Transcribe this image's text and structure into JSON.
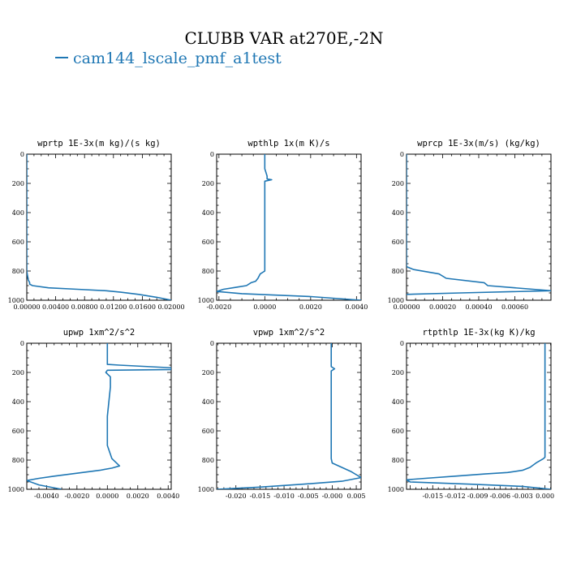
{
  "figure_title": "CLUBB VAR at270E,-2N",
  "legend": {
    "label": "cam144_lscale_pmf_a1test",
    "color": "#1f77b4"
  },
  "chart_data": [
    {
      "type": "line",
      "title": "wprtp  1E-3x(m kg)/(s kg)",
      "xlim": [
        0.0,
        0.02
      ],
      "ylim": [
        1000,
        0
      ],
      "xticks": [
        0.0,
        0.004,
        0.008,
        0.012,
        0.016,
        0.02
      ],
      "xtick_labels": [
        "0.00000",
        "0.00400",
        "0.00800",
        "0.01200",
        "0.01600",
        "0.02000"
      ],
      "yticks": [
        0,
        200,
        400,
        600,
        800,
        1000
      ],
      "series": [
        {
          "x": [
            0.0,
            0.0,
            0.0,
            0.0,
            0.0,
            0.0002,
            0.0004,
            0.0004,
            0.0008,
            0.003,
            0.007,
            0.011,
            0.013,
            0.0155,
            0.018,
            0.02
          ],
          "y": [
            0,
            200,
            400,
            600,
            800,
            860,
            880,
            890,
            900,
            915,
            925,
            935,
            945,
            960,
            980,
            1000
          ]
        }
      ]
    },
    {
      "type": "line",
      "title": "wpthlp  1x(m K)/s",
      "xlim": [
        -0.0021,
        0.0042
      ],
      "ylim": [
        1000,
        0
      ],
      "xticks": [
        -0.002,
        0.0,
        0.002,
        0.004
      ],
      "xtick_labels": [
        "-0.0020",
        "0.0000",
        "0.0020",
        "0.0040"
      ],
      "yticks": [
        0,
        200,
        400,
        600,
        800,
        1000
      ],
      "series": [
        {
          "x": [
            0.0,
            0.0,
            0.0001,
            0.0001,
            0.0001,
            0.0003,
            0.0,
            0.0,
            0.0,
            0.0,
            0.0,
            0.0,
            0.0,
            0.0,
            -0.0002,
            -0.0003,
            -0.0004,
            -0.0006,
            -0.0008,
            -0.0012,
            -0.0018,
            -0.0021,
            -0.001,
            0.002,
            0.0042
          ],
          "y": [
            0,
            100,
            150,
            165,
            170,
            175,
            185,
            200,
            300,
            400,
            500,
            600,
            700,
            800,
            820,
            850,
            870,
            880,
            900,
            910,
            925,
            940,
            955,
            975,
            1000
          ]
        }
      ]
    },
    {
      "type": "line",
      "title": "wprcp  1E-3x(m/s) (kg/kg)",
      "xlim": [
        0.0,
        0.0008
      ],
      "ylim": [
        1000,
        0
      ],
      "xticks": [
        0.0,
        0.0002,
        0.0004,
        0.0006
      ],
      "xtick_labels": [
        "0.00000",
        "0.00020",
        "0.00040",
        "0.00060"
      ],
      "yticks": [
        0,
        200,
        400,
        600,
        800,
        1000
      ],
      "series": [
        {
          "x": [
            0.0,
            0.0,
            0.0,
            4e-05,
            0.00018,
            0.00022,
            0.00043,
            0.00045,
            0.0006,
            0.0008,
            0.0003,
            0.0
          ],
          "y": [
            0,
            600,
            770,
            790,
            820,
            850,
            880,
            900,
            915,
            935,
            950,
            960
          ]
        }
      ]
    },
    {
      "type": "line",
      "title": "upwp  1xm^2/s^2",
      "xlim": [
        -0.0053,
        0.0042
      ],
      "ylim": [
        1000,
        0
      ],
      "xticks": [
        -0.004,
        -0.002,
        0.0,
        0.002,
        0.004
      ],
      "xtick_labels": [
        "-0.0040",
        "-0.0020",
        "0.0000",
        "0.0020",
        "0.0040"
      ],
      "yticks": [
        0,
        200,
        400,
        600,
        800,
        1000
      ],
      "series": [
        {
          "x": [
            0.0,
            0.0,
            0.0,
            0.0008,
            0.0042,
            0.0042,
            0.0,
            -0.0001,
            0.0002,
            0.0002,
            0.0001,
            0.0,
            0.0,
            0.0,
            0.0003,
            0.0006,
            0.0008,
            0.0003,
            -0.0005,
            -0.002,
            -0.0035,
            -0.0045,
            -0.0053,
            -0.0045,
            -0.003
          ],
          "y": [
            0,
            100,
            145,
            150,
            168,
            180,
            185,
            200,
            230,
            300,
            400,
            500,
            600,
            700,
            790,
            820,
            840,
            855,
            870,
            890,
            910,
            925,
            940,
            970,
            1000
          ]
        }
      ]
    },
    {
      "type": "line",
      "title": "vpwp  1xm^2/s^2",
      "xlim": [
        -0.024,
        0.006
      ],
      "ylim": [
        1000,
        0
      ],
      "xticks": [
        -0.02,
        -0.015,
        -0.01,
        -0.005,
        0.0,
        0.005
      ],
      "xtick_labels": [
        "-0.020",
        "-0.015",
        "-0.010",
        "-0.005",
        "-0.000",
        "0.005"
      ],
      "yticks": [
        0,
        200,
        400,
        600,
        800,
        1000
      ],
      "series": [
        {
          "x": [
            -0.0002,
            -0.0002,
            -0.0002,
            0.0005,
            -0.0002,
            -0.0002,
            -0.0002,
            -0.0002,
            -0.0002,
            -0.0002,
            -0.0002,
            0.0,
            0.002,
            0.004,
            0.005,
            0.006,
            0.002,
            -0.006,
            -0.015,
            -0.024
          ],
          "y": [
            0,
            100,
            160,
            175,
            190,
            200,
            300,
            400,
            500,
            600,
            790,
            820,
            850,
            880,
            900,
            920,
            945,
            965,
            985,
            1000
          ]
        }
      ]
    },
    {
      "type": "line",
      "title": "rtpthlp  1E-3x(kg K)/kg",
      "xlim": [
        -0.0185,
        0.0008
      ],
      "ylim": [
        1000,
        0
      ],
      "xticks": [
        -0.015,
        -0.012,
        -0.009,
        -0.006,
        -0.003,
        0.0
      ],
      "xtick_labels": [
        "-0.015",
        "-0.012",
        "-0.009",
        "-0.006",
        "-0.003",
        "0.000"
      ],
      "yticks": [
        0,
        200,
        400,
        600,
        800,
        1000
      ],
      "series": [
        {
          "x": [
            0.0,
            0.0,
            0.0,
            0.0,
            0.0,
            -0.0002,
            -0.0012,
            -0.002,
            -0.003,
            -0.005,
            -0.008,
            -0.012,
            -0.016,
            -0.0185,
            -0.018,
            -0.01,
            -0.003,
            0.0008
          ],
          "y": [
            0,
            200,
            400,
            600,
            780,
            790,
            820,
            850,
            870,
            885,
            895,
            910,
            925,
            935,
            950,
            965,
            980,
            1000
          ]
        }
      ]
    }
  ]
}
